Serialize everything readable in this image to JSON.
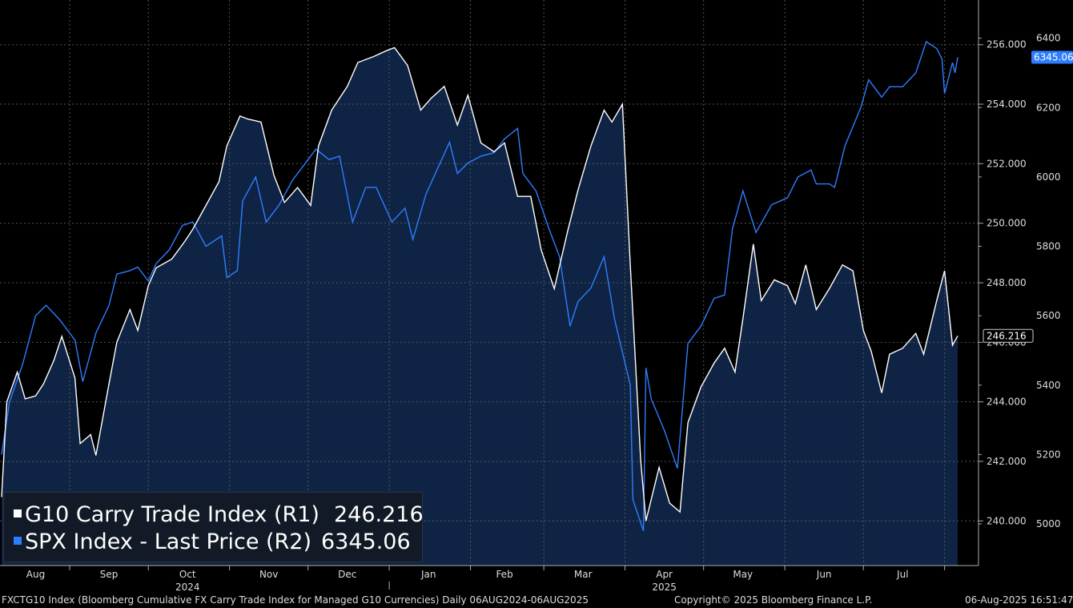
{
  "chart_data": {
    "type": "line",
    "x_range": [
      "2024-08-06",
      "2025-08-06"
    ],
    "month_labels": [
      "Aug",
      "Sep",
      "Oct",
      "Nov",
      "Dec",
      "Jan",
      "Feb",
      "Mar",
      "Apr",
      "May",
      "Jun",
      "Jul"
    ],
    "year_labels": [
      "2024",
      "2025"
    ],
    "right_axis_1": {
      "ticks": [
        "240.000",
        "242.000",
        "244.000",
        "246.000",
        "248.000",
        "250.000",
        "252.000",
        "254.000",
        "256.000"
      ],
      "ylim": [
        238.5,
        257.5
      ]
    },
    "right_axis_2": {
      "ticks": [
        "5000",
        "5200",
        "5400",
        "5600",
        "5800",
        "6000",
        "6200",
        "6400"
      ],
      "ylim": [
        4880,
        6510
      ]
    },
    "series": [
      {
        "name": "G10 Carry Trade Index (R1)",
        "axis": "R1",
        "color": "#ffffff",
        "fill": "#0f2444",
        "last_label": "246.216",
        "points": [
          [
            "2024-08-06",
            240.8
          ],
          [
            "2024-08-08",
            244.0
          ],
          [
            "2024-08-12",
            245.0
          ],
          [
            "2024-08-15",
            244.1
          ],
          [
            "2024-08-19",
            244.2
          ],
          [
            "2024-08-22",
            244.6
          ],
          [
            "2024-08-26",
            245.4
          ],
          [
            "2024-08-29",
            246.2
          ],
          [
            "2024-09-03",
            244.8
          ],
          [
            "2024-09-05",
            242.6
          ],
          [
            "2024-09-09",
            242.9
          ],
          [
            "2024-09-11",
            242.2
          ],
          [
            "2024-09-16",
            244.6
          ],
          [
            "2024-09-19",
            246.0
          ],
          [
            "2024-09-24",
            247.1
          ],
          [
            "2024-09-27",
            246.4
          ],
          [
            "2024-10-01",
            247.9
          ],
          [
            "2024-10-04",
            248.5
          ],
          [
            "2024-10-10",
            248.8
          ],
          [
            "2024-10-15",
            249.4
          ],
          [
            "2024-10-18",
            249.8
          ],
          [
            "2024-10-23",
            250.6
          ],
          [
            "2024-10-28",
            251.4
          ],
          [
            "2024-10-31",
            252.6
          ],
          [
            "2024-11-05",
            253.6
          ],
          [
            "2024-11-08",
            253.5
          ],
          [
            "2024-11-13",
            253.4
          ],
          [
            "2024-11-18",
            251.6
          ],
          [
            "2024-11-22",
            250.7
          ],
          [
            "2024-11-27",
            251.2
          ],
          [
            "2024-12-02",
            250.6
          ],
          [
            "2024-12-05",
            252.6
          ],
          [
            "2024-12-10",
            253.8
          ],
          [
            "2024-12-16",
            254.6
          ],
          [
            "2024-12-20",
            255.4
          ],
          [
            "2024-12-26",
            255.6
          ],
          [
            "2024-12-31",
            255.8
          ],
          [
            "2025-01-03",
            255.9
          ],
          [
            "2025-01-08",
            255.3
          ],
          [
            "2025-01-13",
            253.8
          ],
          [
            "2025-01-17",
            254.2
          ],
          [
            "2025-01-22",
            254.6
          ],
          [
            "2025-01-27",
            253.3
          ],
          [
            "2025-01-31",
            254.3
          ],
          [
            "2025-02-05",
            252.7
          ],
          [
            "2025-02-10",
            252.4
          ],
          [
            "2025-02-14",
            252.7
          ],
          [
            "2025-02-19",
            250.9
          ],
          [
            "2025-02-24",
            250.9
          ],
          [
            "2025-02-28",
            249.1
          ],
          [
            "2025-03-05",
            247.8
          ],
          [
            "2025-03-10",
            249.7
          ],
          [
            "2025-03-14",
            251.1
          ],
          [
            "2025-03-19",
            252.6
          ],
          [
            "2025-03-24",
            253.8
          ],
          [
            "2025-03-27",
            253.4
          ],
          [
            "2025-03-31",
            254.0
          ],
          [
            "2025-04-03",
            248.6
          ],
          [
            "2025-04-07",
            242.0
          ],
          [
            "2025-04-09",
            240.0
          ],
          [
            "2025-04-14",
            241.8
          ],
          [
            "2025-04-18",
            240.6
          ],
          [
            "2025-04-22",
            240.3
          ],
          [
            "2025-04-25",
            243.3
          ],
          [
            "2025-04-30",
            244.5
          ],
          [
            "2025-05-05",
            245.3
          ],
          [
            "2025-05-09",
            245.8
          ],
          [
            "2025-05-13",
            245.0
          ],
          [
            "2025-05-16",
            246.8
          ],
          [
            "2025-05-20",
            249.3
          ],
          [
            "2025-05-23",
            247.4
          ],
          [
            "2025-05-28",
            248.1
          ],
          [
            "2025-06-02",
            247.9
          ],
          [
            "2025-06-05",
            247.3
          ],
          [
            "2025-06-09",
            248.6
          ],
          [
            "2025-06-13",
            247.1
          ],
          [
            "2025-06-18",
            247.8
          ],
          [
            "2025-06-23",
            248.6
          ],
          [
            "2025-06-27",
            248.4
          ],
          [
            "2025-07-01",
            246.4
          ],
          [
            "2025-07-04",
            245.7
          ],
          [
            "2025-07-08",
            244.3
          ],
          [
            "2025-07-11",
            245.6
          ],
          [
            "2025-07-16",
            245.8
          ],
          [
            "2025-07-21",
            246.3
          ],
          [
            "2025-07-24",
            245.6
          ],
          [
            "2025-07-29",
            247.4
          ],
          [
            "2025-08-01",
            248.4
          ],
          [
            "2025-08-04",
            245.9
          ],
          [
            "2025-08-06",
            246.216
          ]
        ]
      },
      {
        "name": "SPX Index - Last Price (R2)",
        "axis": "R2",
        "color": "#2e7dff",
        "last_label": "6345.06",
        "points": [
          [
            "2024-08-06",
            5200
          ],
          [
            "2024-08-09",
            5350
          ],
          [
            "2024-08-14",
            5460
          ],
          [
            "2024-08-19",
            5600
          ],
          [
            "2024-08-23",
            5630
          ],
          [
            "2024-08-28",
            5590
          ],
          [
            "2024-09-03",
            5530
          ],
          [
            "2024-09-06",
            5410
          ],
          [
            "2024-09-11",
            5550
          ],
          [
            "2024-09-16",
            5630
          ],
          [
            "2024-09-19",
            5720
          ],
          [
            "2024-09-24",
            5730
          ],
          [
            "2024-09-27",
            5740
          ],
          [
            "2024-10-01",
            5700
          ],
          [
            "2024-10-04",
            5750
          ],
          [
            "2024-10-09",
            5790
          ],
          [
            "2024-10-14",
            5860
          ],
          [
            "2024-10-18",
            5870
          ],
          [
            "2024-10-23",
            5800
          ],
          [
            "2024-10-29",
            5830
          ],
          [
            "2024-10-31",
            5710
          ],
          [
            "2024-11-04",
            5730
          ],
          [
            "2024-11-06",
            5930
          ],
          [
            "2024-11-11",
            6000
          ],
          [
            "2024-11-15",
            5870
          ],
          [
            "2024-11-20",
            5920
          ],
          [
            "2024-11-25",
            5990
          ],
          [
            "2024-11-29",
            6030
          ],
          [
            "2024-12-04",
            6080
          ],
          [
            "2024-12-09",
            6050
          ],
          [
            "2024-12-13",
            6060
          ],
          [
            "2024-12-18",
            5870
          ],
          [
            "2024-12-23",
            5970
          ],
          [
            "2024-12-27",
            5970
          ],
          [
            "2025-01-02",
            5870
          ],
          [
            "2025-01-07",
            5910
          ],
          [
            "2025-01-10",
            5820
          ],
          [
            "2025-01-15",
            5950
          ],
          [
            "2025-01-21",
            6050
          ],
          [
            "2025-01-24",
            6100
          ],
          [
            "2025-01-27",
            6010
          ],
          [
            "2025-01-31",
            6040
          ],
          [
            "2025-02-05",
            6060
          ],
          [
            "2025-02-10",
            6070
          ],
          [
            "2025-02-14",
            6110
          ],
          [
            "2025-02-19",
            6140
          ],
          [
            "2025-02-21",
            6010
          ],
          [
            "2025-02-26",
            5960
          ],
          [
            "2025-03-03",
            5850
          ],
          [
            "2025-03-07",
            5770
          ],
          [
            "2025-03-11",
            5570
          ],
          [
            "2025-03-14",
            5640
          ],
          [
            "2025-03-19",
            5680
          ],
          [
            "2025-03-24",
            5770
          ],
          [
            "2025-03-28",
            5590
          ],
          [
            "2025-04-03",
            5400
          ],
          [
            "2025-04-04",
            5070
          ],
          [
            "2025-04-08",
            4980
          ],
          [
            "2025-04-09",
            5450
          ],
          [
            "2025-04-11",
            5360
          ],
          [
            "2025-04-16",
            5270
          ],
          [
            "2025-04-21",
            5160
          ],
          [
            "2025-04-25",
            5520
          ],
          [
            "2025-04-30",
            5570
          ],
          [
            "2025-05-05",
            5650
          ],
          [
            "2025-05-09",
            5660
          ],
          [
            "2025-05-12",
            5850
          ],
          [
            "2025-05-16",
            5960
          ],
          [
            "2025-05-21",
            5840
          ],
          [
            "2025-05-27",
            5920
          ],
          [
            "2025-06-02",
            5940
          ],
          [
            "2025-06-06",
            6000
          ],
          [
            "2025-06-11",
            6020
          ],
          [
            "2025-06-13",
            5980
          ],
          [
            "2025-06-18",
            5980
          ],
          [
            "2025-06-20",
            5970
          ],
          [
            "2025-06-24",
            6090
          ],
          [
            "2025-06-30",
            6200
          ],
          [
            "2025-07-03",
            6280
          ],
          [
            "2025-07-08",
            6230
          ],
          [
            "2025-07-11",
            6260
          ],
          [
            "2025-07-16",
            6260
          ],
          [
            "2025-07-21",
            6300
          ],
          [
            "2025-07-25",
            6390
          ],
          [
            "2025-07-29",
            6370
          ],
          [
            "2025-07-31",
            6340
          ],
          [
            "2025-08-01",
            6240
          ],
          [
            "2025-08-04",
            6330
          ],
          [
            "2025-08-05",
            6300
          ],
          [
            "2025-08-06",
            6345.06
          ]
        ]
      }
    ],
    "legend_position": "bottom-left",
    "grid": true
  },
  "legend": {
    "r1_label": "G10 Carry Trade Index (R1)",
    "r1_value": "246.216",
    "r2_label": "SPX Index - Last Price (R2)",
    "r2_value": "6345.06"
  },
  "footer": {
    "left": "FXCTG10 Index (Bloomberg Cumulative FX Carry Trade Index for Managed G10 Currencies)  Daily 06AUG2024-06AUG2025",
    "center": "Copyright© 2025 Bloomberg Finance L.P.",
    "right": "06-Aug-2025 16:51:47"
  }
}
